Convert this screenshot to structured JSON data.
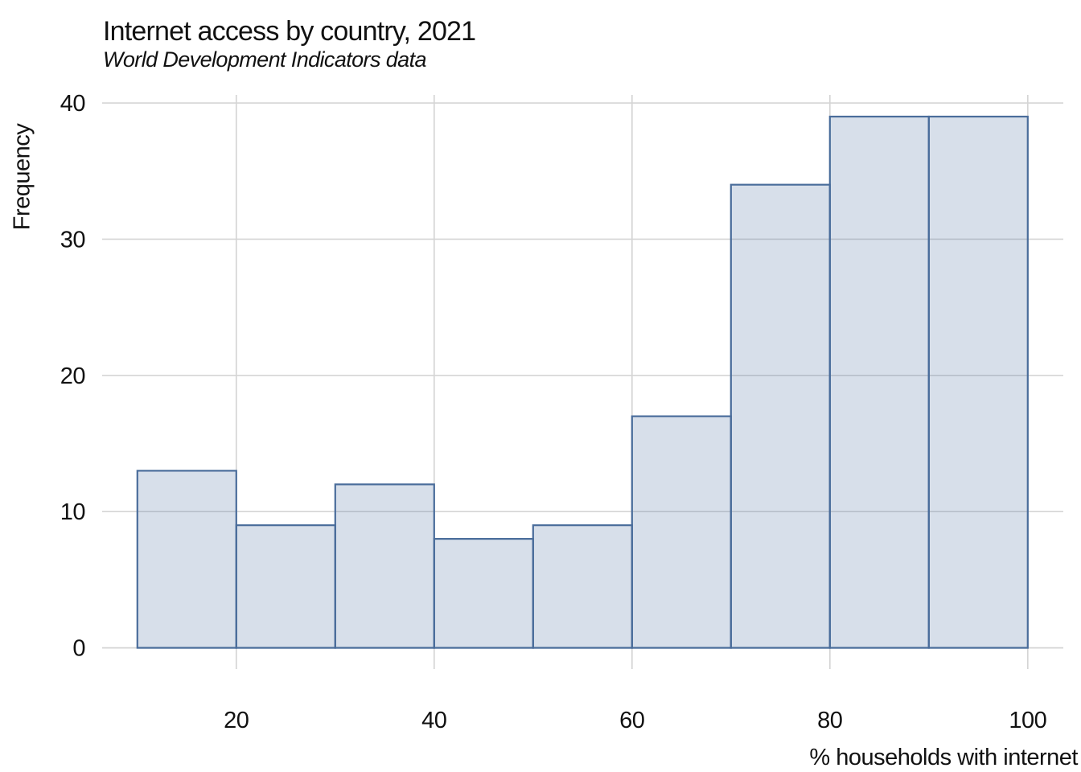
{
  "chart_data": {
    "type": "bar",
    "subtype": "histogram",
    "title": "Internet access by country, 2021",
    "subtitle": "World Development Indicators data",
    "xlabel": "% households with internet",
    "ylabel": "Frequency",
    "bin_edges": [
      10,
      20,
      30,
      40,
      50,
      60,
      70,
      80,
      90,
      100
    ],
    "counts": [
      13,
      9,
      12,
      8,
      9,
      17,
      34,
      39,
      39
    ],
    "x_ticks": [
      20,
      40,
      60,
      80,
      100
    ],
    "y_ticks": [
      0,
      10,
      20,
      30,
      40
    ],
    "xlim": [
      6.5,
      103.7
    ],
    "ylim": [
      0,
      40.6
    ],
    "grid": true,
    "legend": "none",
    "colors": {
      "bar_fill": "rgba(74,109,158,0.22)",
      "bar_stroke": "#4a6d9b",
      "gridline": "#d5d5d5",
      "text": "#111111",
      "background": "#ffffff"
    }
  }
}
